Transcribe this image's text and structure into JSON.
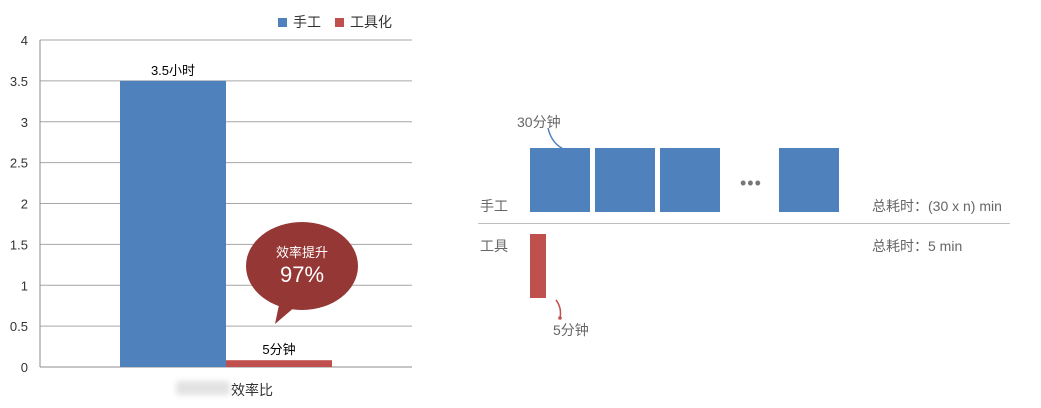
{
  "chart_data": {
    "type": "bar",
    "categories": [
      "效率比"
    ],
    "series": [
      {
        "name": "手工",
        "values": [
          3.5
        ],
        "color": "#4f81bd",
        "data_label": "3.5小时"
      },
      {
        "name": "工具化",
        "values": [
          0.083
        ],
        "color": "#c0504d",
        "data_label": "5分钟"
      }
    ],
    "yticks": [
      "0",
      "0.5",
      "1",
      "1.5",
      "2",
      "2.5",
      "3",
      "3.5",
      "4"
    ],
    "ylim": [
      0,
      4
    ],
    "grid": true,
    "legend_position": "top-right",
    "annotation": {
      "title": "效率提升",
      "value": "97%",
      "color": "#953735"
    }
  },
  "diagram": {
    "manual_label": "手工",
    "tool_label": "工具",
    "manual_block_note": "30分钟",
    "ellipsis": "•••",
    "manual_total": "总耗时：(30 x n) min",
    "tool_total": "总耗时：5 min",
    "tool_note": "5分钟"
  }
}
